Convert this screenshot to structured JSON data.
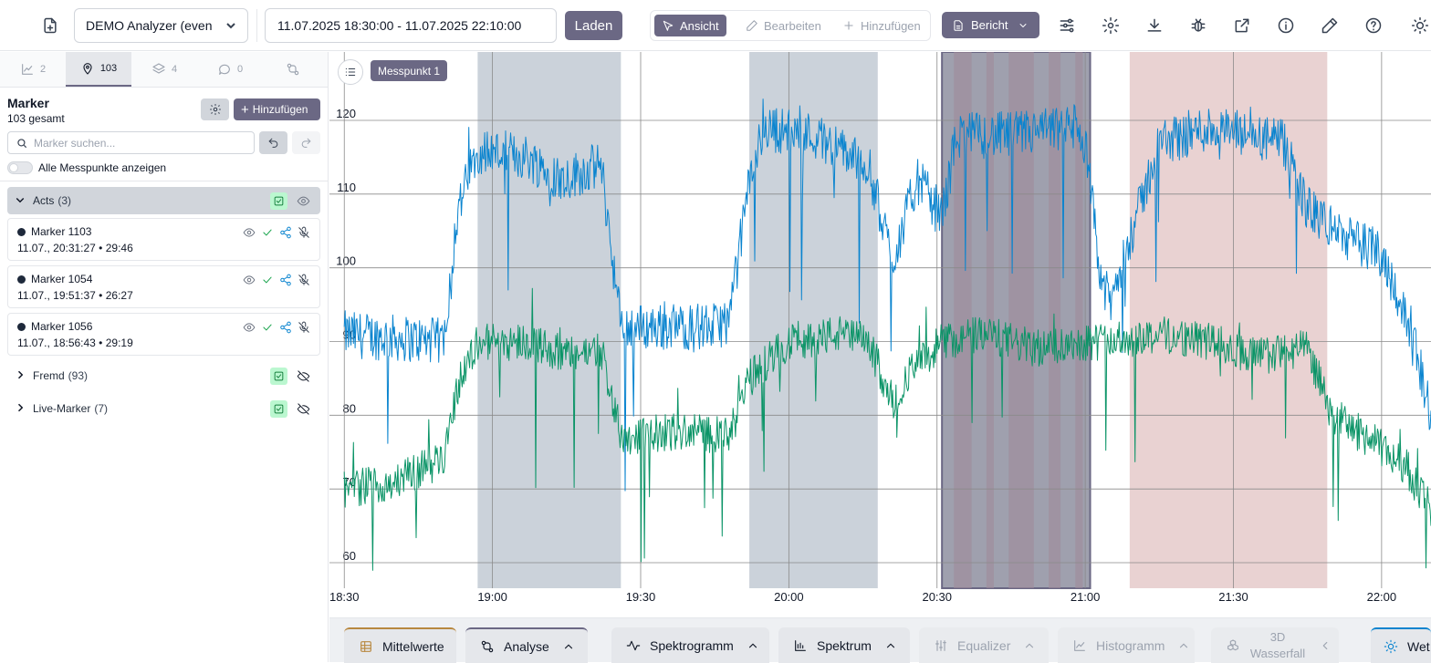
{
  "header": {
    "analyzer_select": "DEMO Analyzer (even",
    "date_range": "11.07.2025 18:30:00 - 11.07.2025 22:10:00",
    "load_label": "Laden",
    "mode_view": "Ansicht",
    "mode_edit": "Bearbeiten",
    "mode_add": "Hinzufügen",
    "report_label": "Bericht"
  },
  "sidebar": {
    "tabs": [
      {
        "icon": "chart-icon",
        "count": "2"
      },
      {
        "icon": "map-pin-icon",
        "count": "103"
      },
      {
        "icon": "layers-icon",
        "count": "4"
      },
      {
        "icon": "comment-icon",
        "count": "0"
      },
      {
        "icon": "flow-icon",
        "count": ""
      }
    ],
    "title": "Marker",
    "subtitle": "103 gesamt",
    "add_label": "Hinzufügen",
    "search_placeholder": "Marker suchen...",
    "toggle_label": "Alle Messpunkte anzeigen",
    "groups": [
      {
        "name": "Acts",
        "count": "(3)",
        "expanded": true
      },
      {
        "name": "Fremd",
        "count": "(93)",
        "expanded": false
      },
      {
        "name": "Live-Marker",
        "count": "(7)",
        "expanded": false
      }
    ],
    "markers": [
      {
        "name": "Marker 1103",
        "meta": "11.07., 20:31:27  •  29:46"
      },
      {
        "name": "Marker 1054",
        "meta": "11.07., 19:51:37  •  26:27"
      },
      {
        "name": "Marker 1056",
        "meta": "11.07., 18:56:43  •  29:19"
      }
    ]
  },
  "chart": {
    "point_label": "Messpunkt 1"
  },
  "chart_data": {
    "type": "line",
    "x_ticks": [
      "18:30",
      "19:00",
      "19:30",
      "20:00",
      "20:30",
      "21:00",
      "21:30",
      "22:00"
    ],
    "y_ticks": [
      60,
      70,
      80,
      90,
      100,
      110,
      120
    ],
    "ylim": [
      57,
      125
    ],
    "xlim": [
      "18:27",
      "22:10"
    ],
    "grid": true,
    "series": [
      {
        "color": "#0a84cf",
        "points": [
          [
            "18:30",
            91
          ],
          [
            "18:50",
            90
          ],
          [
            "18:53",
            108
          ],
          [
            "18:57",
            116
          ],
          [
            "19:07",
            115
          ],
          [
            "19:14",
            112
          ],
          [
            "19:22",
            114
          ],
          [
            "19:26",
            92
          ],
          [
            "19:45",
            92
          ],
          [
            "19:48",
            93
          ],
          [
            "19:52",
            112
          ],
          [
            "19:55",
            119
          ],
          [
            "20:05",
            118
          ],
          [
            "20:16",
            114
          ],
          [
            "20:21",
            101
          ],
          [
            "20:26",
            112
          ],
          [
            "20:31",
            107
          ],
          [
            "20:34",
            118
          ],
          [
            "20:45",
            118
          ],
          [
            "20:58",
            119
          ],
          [
            "21:00",
            117
          ],
          [
            "21:03",
            99
          ],
          [
            "21:05",
            95
          ],
          [
            "21:10",
            106
          ],
          [
            "21:15",
            117
          ],
          [
            "21:25",
            119
          ],
          [
            "21:32",
            118
          ],
          [
            "21:40",
            117
          ],
          [
            "21:45",
            108
          ],
          [
            "21:53",
            104
          ],
          [
            "22:00",
            102
          ],
          [
            "22:04",
            95
          ],
          [
            "22:08",
            86
          ],
          [
            "22:10",
            80
          ]
        ]
      },
      {
        "color": "#0b9467",
        "points": [
          [
            "18:30",
            70
          ],
          [
            "18:40",
            71
          ],
          [
            "18:50",
            74
          ],
          [
            "18:53",
            84
          ],
          [
            "18:57",
            90
          ],
          [
            "19:08",
            90
          ],
          [
            "19:15",
            88
          ],
          [
            "19:22",
            89
          ],
          [
            "19:26",
            77
          ],
          [
            "19:40",
            78
          ],
          [
            "19:48",
            77
          ],
          [
            "19:52",
            85
          ],
          [
            "20:00",
            90
          ],
          [
            "20:10",
            91
          ],
          [
            "20:16",
            90
          ],
          [
            "20:21",
            82
          ],
          [
            "20:26",
            87
          ],
          [
            "20:31",
            90
          ],
          [
            "20:40",
            91
          ],
          [
            "20:50",
            89
          ],
          [
            "21:00",
            90
          ],
          [
            "21:05",
            90
          ],
          [
            "21:15",
            91
          ],
          [
            "21:25",
            90
          ],
          [
            "21:35",
            88
          ],
          [
            "21:45",
            89
          ],
          [
            "21:50",
            80
          ],
          [
            "21:57",
            77
          ],
          [
            "22:05",
            73
          ],
          [
            "22:10",
            67
          ]
        ]
      }
    ],
    "bands": [
      {
        "start": "18:57",
        "end": "19:26",
        "color": "#cbd2da"
      },
      {
        "start": "19:52",
        "end": "20:18",
        "color": "#cbd2da"
      },
      {
        "start": "20:31",
        "end": "21:01",
        "color": "#8e8fa0"
      },
      {
        "start": "21:09",
        "end": "21:49",
        "color": "#e9d2d2"
      }
    ]
  },
  "bottom_tabs": [
    {
      "label": "Mittelwerte",
      "icon": "table-icon",
      "state": "normal",
      "accent": "#b88840"
    },
    {
      "label": "Analyse",
      "icon": "flow-icon",
      "state": "normal",
      "accent": "#6b6884"
    },
    {
      "label": "Spektrogramm",
      "icon": "wave-icon",
      "state": "normal"
    },
    {
      "label": "Spektrum",
      "icon": "bars-icon",
      "state": "normal"
    },
    {
      "label": "Equalizer",
      "icon": "sliders-icon",
      "state": "disabled"
    },
    {
      "label": "Histogramm",
      "icon": "chart-icon",
      "state": "disabled"
    },
    {
      "label": "3D Wasserfall",
      "icon": "cubes-icon",
      "state": "disabled"
    },
    {
      "label": "Wet",
      "icon": "sun-icon",
      "state": "normal",
      "accent": "#0a84cf"
    }
  ]
}
